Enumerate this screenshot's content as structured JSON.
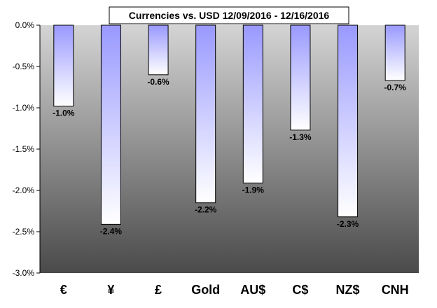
{
  "chart_data": {
    "type": "bar",
    "title": "Currencies vs. USD 12/09/2016 - 12/16/2016",
    "categories": [
      "€",
      "¥",
      "£",
      "Gold",
      "AU$",
      "C$",
      "NZ$",
      "CNH"
    ],
    "values": [
      -0.98,
      -2.41,
      -0.6,
      -2.15,
      -1.91,
      -1.27,
      -2.32,
      -0.67
    ],
    "data_labels": [
      "-1.0%",
      "-2.4%",
      "-0.6%",
      "-2.2%",
      "-1.9%",
      "-1.3%",
      "-2.3%",
      "-0.7%"
    ],
    "ylim": [
      -3.0,
      0.0
    ],
    "yticks": [
      0.0,
      -0.5,
      -1.0,
      -1.5,
      -2.0,
      -2.5,
      -3.0
    ],
    "ytick_labels": [
      "0.0%",
      "-0.5%",
      "-1.0%",
      "-1.5%",
      "-2.0%",
      "-2.5%",
      "-3.0%"
    ],
    "xlabel": "",
    "ylabel": "",
    "grid": false,
    "legend": "none",
    "colors": {
      "bar_top": "#9999ff",
      "bar_bottom": "#ffffff",
      "plot_bg_top": "#d4d4d4",
      "plot_bg_bottom": "#4a4a4a",
      "outline": "#000000"
    }
  }
}
